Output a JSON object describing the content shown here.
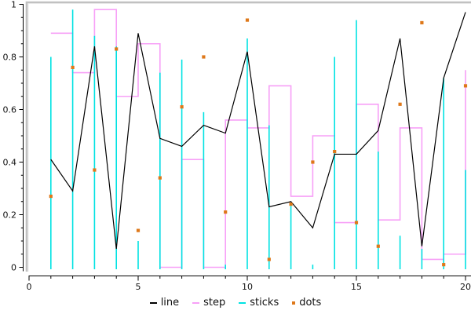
{
  "chart_data": {
    "type": "combo",
    "x": [
      1,
      2,
      3,
      4,
      5,
      6,
      7,
      8,
      9,
      10,
      11,
      12,
      13,
      14,
      15,
      16,
      17,
      18,
      19,
      20
    ],
    "series": [
      {
        "name": "line",
        "type": "line",
        "color": "#000000",
        "values": [
          0.41,
          0.29,
          0.84,
          0.07,
          0.89,
          0.49,
          0.46,
          0.54,
          0.51,
          0.82,
          0.23,
          0.25,
          0.15,
          0.43,
          0.43,
          0.52,
          0.87,
          0.08,
          0.72,
          0.97
        ]
      },
      {
        "name": "step",
        "type": "step",
        "color": "#F7A0F7",
        "values": [
          0.89,
          0.74,
          0.98,
          0.65,
          0.85,
          0.0,
          0.41,
          0.0,
          0.56,
          0.53,
          0.69,
          0.27,
          0.5,
          0.17,
          0.62,
          0.18,
          0.53,
          0.03,
          0.05,
          0.75
        ]
      },
      {
        "name": "sticks",
        "type": "sticks",
        "color": "#00E2E2",
        "values": [
          0.8,
          0.98,
          0.88,
          0.84,
          0.1,
          0.74,
          0.79,
          0.59,
          0.01,
          0.87,
          0.54,
          0.24,
          0.01,
          0.8,
          0.94,
          0.44,
          0.12,
          0.07,
          0.72,
          0.37
        ]
      },
      {
        "name": "dots",
        "type": "dots",
        "color": "#DE781A",
        "values": [
          0.27,
          0.76,
          0.37,
          0.83,
          0.14,
          0.34,
          0.61,
          0.8,
          0.21,
          0.94,
          0.03,
          0.24,
          0.4,
          0.44,
          0.17,
          0.08,
          0.62,
          0.93,
          0.01,
          0.69
        ]
      }
    ],
    "title": "",
    "xlabel": "",
    "ylabel": "",
    "xlim": [
      0,
      20
    ],
    "ylim": [
      0,
      1
    ],
    "x_ticks": [
      0,
      5,
      10,
      15,
      20
    ],
    "y_ticks": [
      0,
      0.2,
      0.4,
      0.6,
      0.8,
      1
    ],
    "x_minor_step": 1,
    "y_minor_step": 0.05,
    "grid": false,
    "legend_position": "bottom-center",
    "legend": [
      "line",
      "step",
      "sticks",
      "dots"
    ]
  },
  "style": {
    "frame_color": "#C1C1C1",
    "frame_highlight": "#E9E9E9",
    "axis_color": "#000000",
    "label_color": "#111111"
  }
}
